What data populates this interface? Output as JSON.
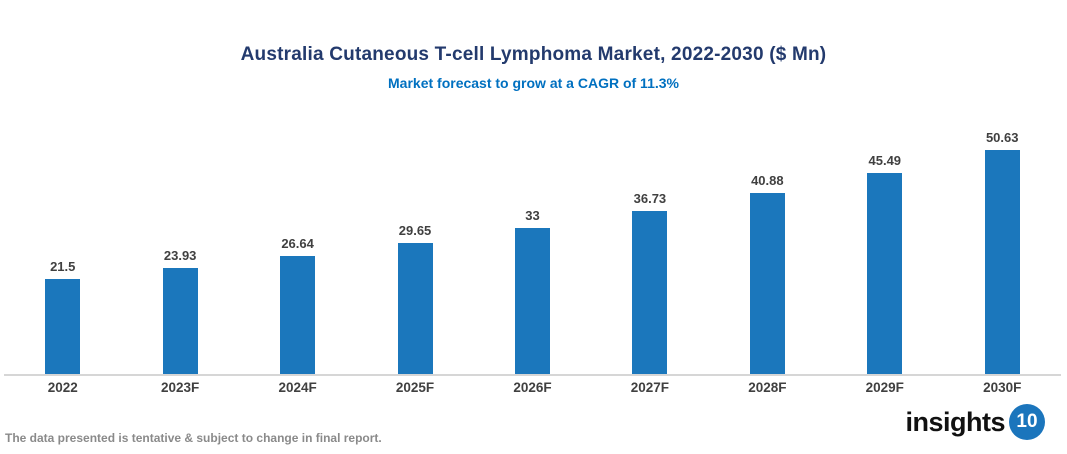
{
  "header": {
    "title": "Australia Cutaneous T-cell Lymphoma Market, 2022-2030 ($ Mn)",
    "subtitle": "Market forecast to grow at a CAGR of 11.3%"
  },
  "chart_data": {
    "type": "bar",
    "categories": [
      "2022",
      "2023F",
      "2024F",
      "2025F",
      "2026F",
      "2027F",
      "2028F",
      "2029F",
      "2030F"
    ],
    "values": [
      21.5,
      23.93,
      26.64,
      29.65,
      33,
      36.73,
      40.88,
      45.49,
      50.63
    ],
    "title": "Australia Cutaneous T-cell Lymphoma Market, 2022-2030 ($ Mn)",
    "subtitle": "Market forecast to grow at a CAGR of 11.3%",
    "xlabel": "",
    "ylabel": "",
    "ylim": [
      0,
      55
    ],
    "data_labels": true,
    "grid": false,
    "legend": false,
    "bar_color": "#1B77BC"
  },
  "colors": {
    "bar": "#1B77BC",
    "title": "#233A6D",
    "subtitle": "#0070C0",
    "axis_line": "#D6D6D6",
    "data_label": "#404040",
    "footer_text": "#8A8A8A",
    "logo_badge": "#1B75BC"
  },
  "footer": {
    "disclaimer": "The data presented is tentative & subject to change in final report."
  },
  "logo": {
    "text": "insights",
    "badge": "10"
  }
}
